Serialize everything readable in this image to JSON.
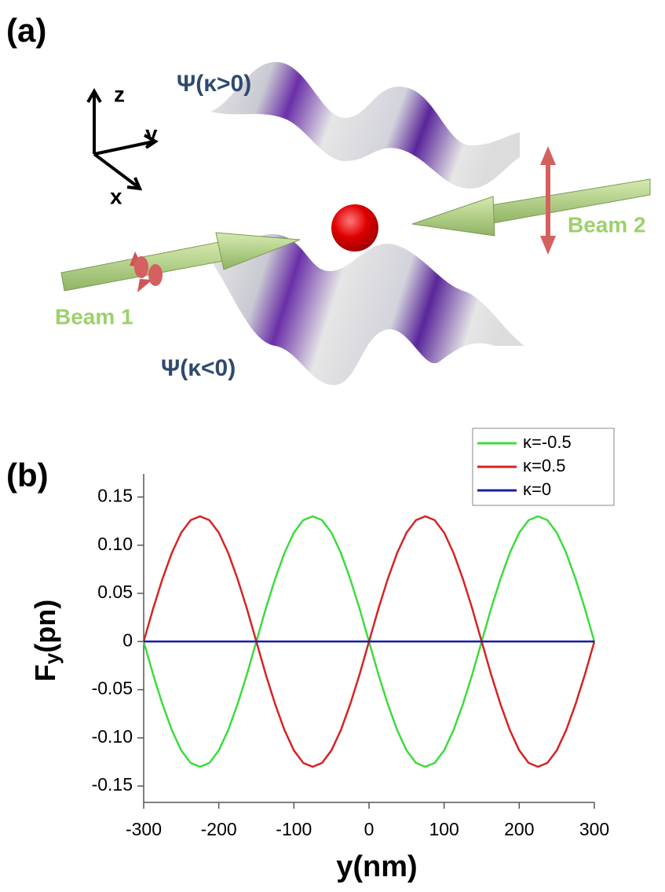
{
  "diagram": {
    "panel_a": "(a)",
    "axis_z": "z",
    "axis_y": "y",
    "axis_x": "x",
    "wave_top": "Ψ(κ>0)",
    "wave_bottom": "Ψ(κ<0)",
    "beam_1": "Beam 1",
    "beam_2": "Beam 2"
  },
  "chart_data": {
    "type": "line",
    "panel_label": "(b)",
    "xlabel": "y(nm)",
    "ylabel": [
      "F",
      "y",
      "(pn)"
    ],
    "x": [
      -300,
      -287.5,
      -275,
      -262.5,
      -250,
      -237.5,
      -225,
      -212.5,
      -200,
      -187.5,
      -175,
      -162.5,
      -150,
      -137.5,
      -125,
      -112.5,
      -100,
      -87.5,
      -75,
      -62.5,
      -50,
      -37.5,
      -25,
      -12.5,
      0,
      12.5,
      25,
      37.5,
      50,
      62.5,
      75,
      87.5,
      100,
      112.5,
      125,
      137.5,
      150,
      162.5,
      175,
      187.5,
      200,
      212.5,
      225,
      237.5,
      250,
      262.5,
      275,
      287.5,
      300
    ],
    "series": [
      {
        "name": "κ=-0.5",
        "color": "#3ddc3d",
        "values": [
          0,
          -0.034,
          -0.065,
          -0.092,
          -0.113,
          -0.126,
          -0.13,
          -0.126,
          -0.113,
          -0.092,
          -0.065,
          -0.034,
          0,
          0.034,
          0.065,
          0.092,
          0.113,
          0.126,
          0.13,
          0.126,
          0.113,
          0.092,
          0.065,
          0.034,
          0,
          -0.034,
          -0.065,
          -0.092,
          -0.113,
          -0.126,
          -0.13,
          -0.126,
          -0.113,
          -0.092,
          -0.065,
          -0.034,
          0,
          0.034,
          0.065,
          0.092,
          0.113,
          0.126,
          0.13,
          0.126,
          0.113,
          0.092,
          0.065,
          0.034,
          0
        ]
      },
      {
        "name": "κ=0.5",
        "color": "#d42424",
        "values": [
          0,
          0.034,
          0.065,
          0.092,
          0.113,
          0.126,
          0.13,
          0.126,
          0.113,
          0.092,
          0.065,
          0.034,
          0,
          -0.034,
          -0.065,
          -0.092,
          -0.113,
          -0.126,
          -0.13,
          -0.126,
          -0.113,
          -0.092,
          -0.065,
          -0.034,
          0,
          0.034,
          0.065,
          0.092,
          0.113,
          0.126,
          0.13,
          0.126,
          0.113,
          0.092,
          0.065,
          0.034,
          0,
          -0.034,
          -0.065,
          -0.092,
          -0.113,
          -0.126,
          -0.13,
          -0.126,
          -0.113,
          -0.092,
          -0.065,
          -0.034,
          0
        ]
      },
      {
        "name": "κ=0",
        "color": "#1c1ca8",
        "values": [
          0,
          0,
          0,
          0,
          0,
          0,
          0,
          0,
          0,
          0,
          0,
          0,
          0,
          0,
          0,
          0,
          0,
          0,
          0,
          0,
          0,
          0,
          0,
          0,
          0,
          0,
          0,
          0,
          0,
          0,
          0,
          0,
          0,
          0,
          0,
          0,
          0,
          0,
          0,
          0,
          0,
          0,
          0,
          0,
          0,
          0,
          0,
          0,
          0
        ]
      }
    ],
    "xlim": [
      -300,
      300
    ],
    "xticks": [
      -300,
      -200,
      -100,
      0,
      100,
      200,
      300
    ],
    "ylim": [
      -0.167,
      0.174
    ],
    "yticks": [
      0.15,
      {
        "value": 0.1,
        "label": "0.10"
      },
      0.05,
      0,
      -0.05,
      {
        "value": -0.1,
        "label": "-0.10"
      },
      -0.15
    ],
    "legend": "upper-right"
  }
}
